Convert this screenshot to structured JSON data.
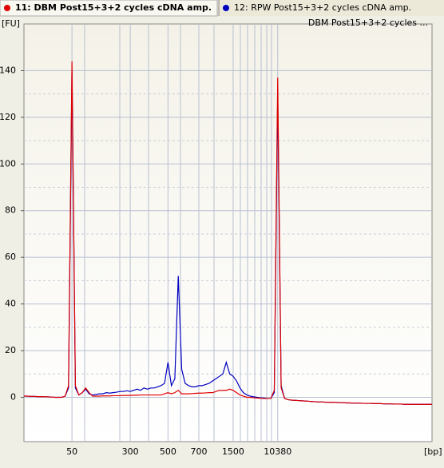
{
  "chart_data": {
    "type": "line",
    "y_label": "[FU]",
    "x_label": "[bp]",
    "annotation": "DBM Post15+3+2 cycles ...",
    "categories": [
      null,
      null,
      null,
      null,
      null,
      null,
      null,
      null,
      null,
      null,
      null,
      null,
      null,
      null,
      "50",
      null,
      null,
      null,
      null,
      null,
      null,
      null,
      null,
      null,
      null,
      null,
      null,
      null,
      null,
      null,
      null,
      "300",
      null,
      null,
      null,
      null,
      null,
      null,
      null,
      null,
      null,
      null,
      "500",
      null,
      null,
      null,
      null,
      null,
      null,
      null,
      null,
      "700",
      null,
      null,
      null,
      null,
      null,
      null,
      null,
      null,
      null,
      "1500",
      null,
      null,
      null,
      null,
      null,
      null,
      null,
      null,
      null,
      null,
      null,
      null,
      "10380",
      null,
      null,
      null,
      null,
      null,
      null,
      null,
      null,
      null,
      null,
      null,
      null,
      null,
      null,
      null,
      null,
      null,
      null,
      null,
      null,
      null,
      null,
      null,
      null,
      null,
      null,
      null,
      null,
      null,
      null,
      null,
      null,
      null,
      null,
      null,
      null,
      null,
      null,
      null,
      null,
      null,
      null,
      null,
      null,
      null
    ],
    "series": [
      {
        "name": "11: DBM Post15+3+2 cycles cDNA amp.",
        "color": "#e00000",
        "values": [
          0.5,
          0.5,
          0.4,
          0.4,
          0.3,
          0.3,
          0.2,
          0.2,
          0.1,
          0,
          0,
          0,
          0.5,
          5,
          144,
          5,
          1,
          2,
          4,
          2,
          0.5,
          0.5,
          0.5,
          0.6,
          0.6,
          0.6,
          0.7,
          0.7,
          0.7,
          0.8,
          0.8,
          0.8,
          0.9,
          0.9,
          1,
          1,
          1,
          1,
          1,
          1,
          1,
          1.5,
          2,
          1.5,
          2,
          3,
          1.5,
          1.5,
          1.5,
          1.6,
          1.7,
          1.8,
          1.8,
          1.9,
          2,
          2,
          2.5,
          3,
          3,
          3,
          3.5,
          3,
          2,
          1,
          0.5,
          0,
          0,
          -0.2,
          -0.3,
          -0.4,
          -0.5,
          -0.5,
          -0.5,
          3,
          137,
          4,
          -0.5,
          -1,
          -1.2,
          -1.3,
          -1.4,
          -1.5,
          -1.6,
          -1.7,
          -1.8,
          -1.9,
          -2,
          -2,
          -2.1,
          -2.1,
          -2.2,
          -2.2,
          -2.3,
          -2.3,
          -2.4,
          -2.4,
          -2.5,
          -2.5,
          -2.5,
          -2.6,
          -2.6,
          -2.6,
          -2.7,
          -2.7,
          -2.7,
          -2.8,
          -2.8,
          -2.8,
          -2.9,
          -2.9,
          -2.9,
          -3,
          -3,
          -3,
          -3,
          -3,
          -3,
          -3,
          -3,
          -3
        ]
      },
      {
        "name": "12: RPW  Post15+3+2 cycles cDNA amp.",
        "color": "#0000c0",
        "values": [
          0.5,
          0.5,
          0.4,
          0.4,
          0.3,
          0.3,
          0.2,
          0.2,
          0.1,
          0,
          0,
          0,
          0.5,
          4,
          140,
          4,
          1,
          2,
          3.5,
          1.5,
          1,
          1.2,
          1.5,
          1.5,
          2,
          1.8,
          2,
          2.2,
          2.5,
          2.5,
          2.8,
          2.5,
          3,
          3.5,
          3,
          4,
          3.5,
          4,
          4,
          4.5,
          5,
          6,
          15,
          5,
          8,
          52,
          12,
          6,
          5,
          4.5,
          4.5,
          5,
          5,
          5.5,
          6,
          7,
          8,
          9,
          10,
          15,
          10,
          9,
          7,
          4,
          2,
          1,
          0.5,
          0.2,
          0,
          -0.2,
          -0.3,
          -0.5,
          -0.5,
          2,
          130,
          5,
          -0.5,
          -1,
          -1.2,
          -1.3,
          -1.4,
          -1.5,
          -1.6,
          -1.7,
          -1.8,
          -1.9,
          -2,
          -2,
          -2.1,
          -2.1,
          -2.2,
          -2.2,
          -2.3,
          -2.3,
          -2.4,
          -2.4,
          -2.5,
          -2.5,
          -2.5,
          -2.6,
          -2.6,
          -2.6,
          -2.7,
          -2.7,
          -2.7,
          -2.8,
          -2.8,
          -2.8,
          -2.9,
          -2.9,
          -2.9,
          -3,
          -3,
          -3,
          -3,
          -3,
          -3,
          -3,
          -3,
          -3
        ]
      }
    ],
    "ylim": [
      -19,
      160
    ],
    "yticks": [
      0,
      20,
      40,
      60,
      80,
      100,
      120,
      140
    ],
    "grid": true
  }
}
